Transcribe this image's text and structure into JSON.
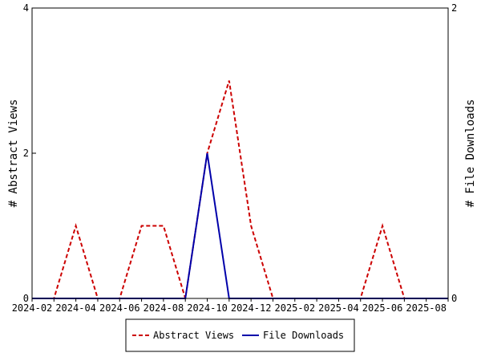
{
  "chart_data": {
    "type": "line",
    "title": "",
    "xlabel": "",
    "ylabel_left": "# Abstract Views",
    "ylabel_right": "# File Downloads",
    "x": [
      "2024-02",
      "2024-03",
      "2024-04",
      "2024-05",
      "2024-06",
      "2024-07",
      "2024-08",
      "2024-09",
      "2024-10",
      "2024-11",
      "2024-12",
      "2025-01",
      "2025-02",
      "2025-03",
      "2025-04",
      "2025-05",
      "2025-06",
      "2025-07",
      "2025-08",
      "2025-09"
    ],
    "x_tick_labels": [
      "2024-02",
      "2024-04",
      "2024-06",
      "2024-08",
      "2024-10",
      "2024-12",
      "2025-02",
      "2025-04",
      "2025-06",
      "2025-08"
    ],
    "ylim_left": [
      0,
      4
    ],
    "y_ticks_left": [
      "0",
      "2",
      "4"
    ],
    "ylim_right": [
      0,
      2
    ],
    "y_ticks_right": [
      "0",
      "2"
    ],
    "grid": false,
    "legend_position": "bottom",
    "series": [
      {
        "name": "Abstract Views",
        "axis": "left",
        "color": "#cc0000",
        "style": "dashed",
        "values": [
          0,
          0,
          1,
          0,
          0,
          1,
          1,
          0,
          2,
          3,
          1,
          0,
          0,
          0,
          0,
          0,
          1,
          0,
          0,
          0
        ]
      },
      {
        "name": "File Downloads",
        "axis": "right",
        "color": "#0000aa",
        "style": "solid",
        "values": [
          0,
          0,
          0,
          0,
          0,
          0,
          0,
          0,
          1,
          0,
          0,
          0,
          0,
          0,
          0,
          0,
          0,
          0,
          0,
          0
        ]
      }
    ]
  }
}
